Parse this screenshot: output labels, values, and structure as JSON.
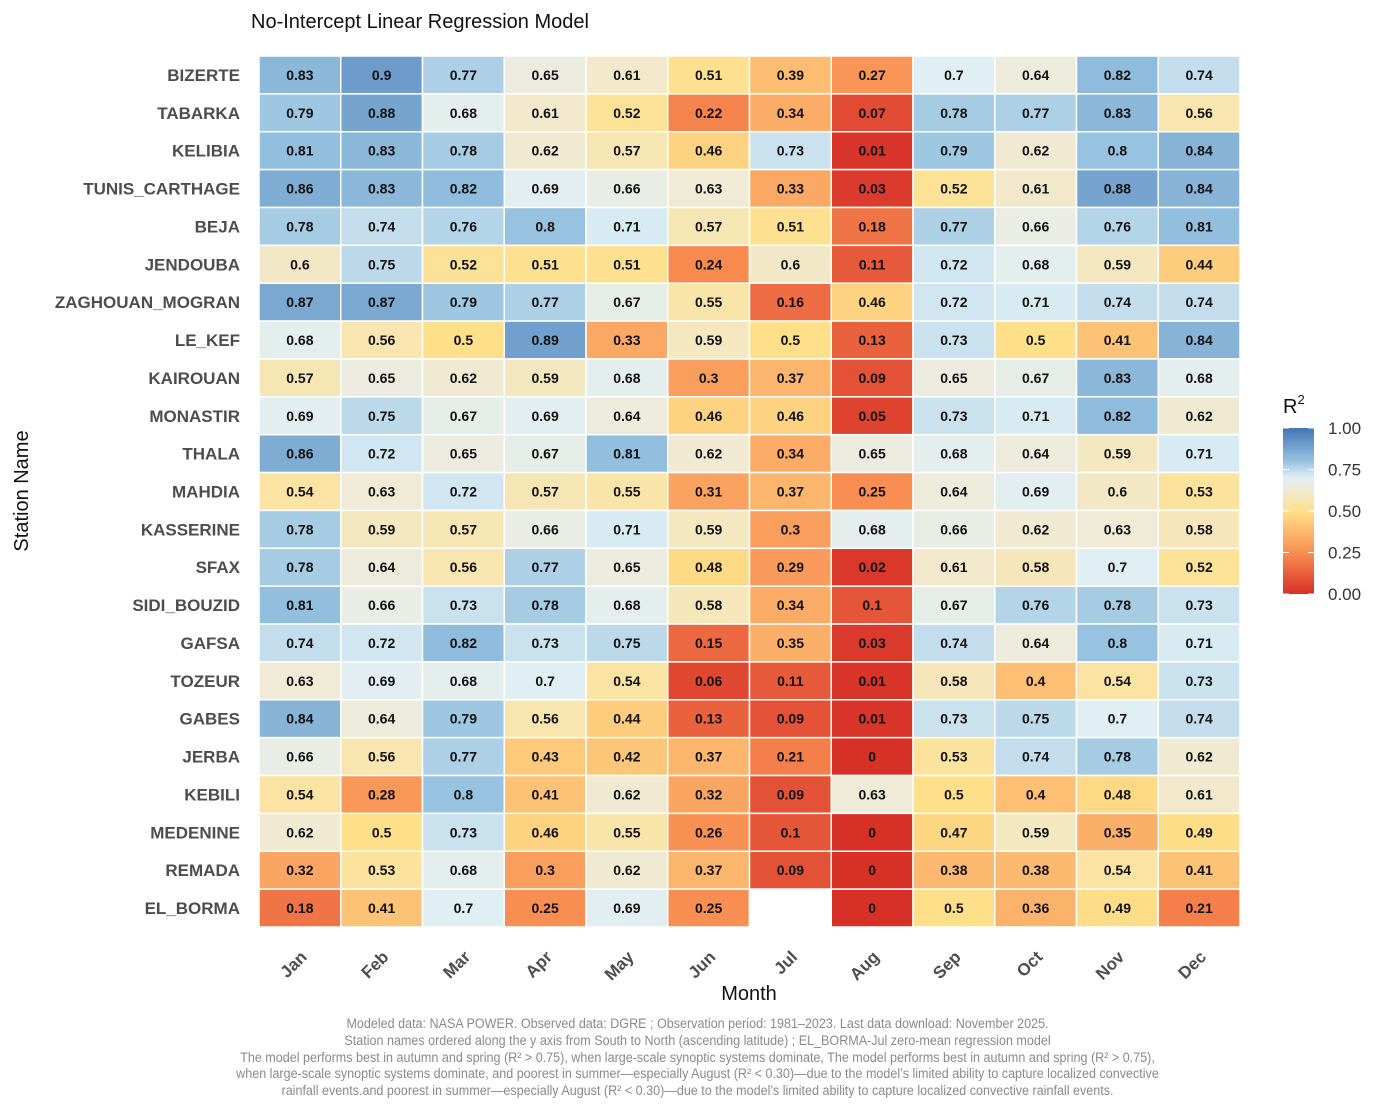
{
  "chart_data": {
    "type": "heatmap",
    "title": "No-Intercept Linear Regression Model",
    "xlabel": "Month",
    "ylabel": "Station Name",
    "x_categories": [
      "Jan",
      "Feb",
      "Mar",
      "Apr",
      "May",
      "Jun",
      "Jul",
      "Aug",
      "Sep",
      "Oct",
      "Nov",
      "Dec"
    ],
    "y_categories": [
      "BIZERTE",
      "TABARKA",
      "KELIBIA",
      "TUNIS_CARTHAGE",
      "BEJA",
      "JENDOUBA",
      "ZAGHOUAN_MOGRAN",
      "LE_KEF",
      "KAIROUAN",
      "MONASTIR",
      "THALA",
      "MAHDIA",
      "KASSERINE",
      "SFAX",
      "SIDI_BOUZID",
      "GAFSA",
      "TOZEUR",
      "GABES",
      "JERBA",
      "KEBILI",
      "MEDENINE",
      "REMADA",
      "EL_BORMA"
    ],
    "values": [
      [
        0.83,
        0.9,
        0.77,
        0.65,
        0.61,
        0.51,
        0.39,
        0.27,
        0.7,
        0.64,
        0.82,
        0.74
      ],
      [
        0.79,
        0.88,
        0.68,
        0.61,
        0.52,
        0.22,
        0.34,
        0.07,
        0.78,
        0.77,
        0.83,
        0.56
      ],
      [
        0.81,
        0.83,
        0.78,
        0.62,
        0.57,
        0.46,
        0.73,
        0.01,
        0.79,
        0.62,
        0.8,
        0.84
      ],
      [
        0.86,
        0.83,
        0.82,
        0.69,
        0.66,
        0.63,
        0.33,
        0.03,
        0.52,
        0.61,
        0.88,
        0.84
      ],
      [
        0.78,
        0.74,
        0.76,
        0.8,
        0.71,
        0.57,
        0.51,
        0.18,
        0.77,
        0.66,
        0.76,
        0.81
      ],
      [
        0.6,
        0.75,
        0.52,
        0.51,
        0.51,
        0.24,
        0.6,
        0.11,
        0.72,
        0.68,
        0.59,
        0.44
      ],
      [
        0.87,
        0.87,
        0.79,
        0.77,
        0.67,
        0.55,
        0.16,
        0.46,
        0.72,
        0.71,
        0.74,
        0.74
      ],
      [
        0.68,
        0.56,
        0.5,
        0.89,
        0.33,
        0.59,
        0.5,
        0.13,
        0.73,
        0.5,
        0.41,
        0.84
      ],
      [
        0.57,
        0.65,
        0.62,
        0.59,
        0.68,
        0.3,
        0.37,
        0.09,
        0.65,
        0.67,
        0.83,
        0.68
      ],
      [
        0.69,
        0.75,
        0.67,
        0.69,
        0.64,
        0.46,
        0.46,
        0.05,
        0.73,
        0.71,
        0.82,
        0.62
      ],
      [
        0.86,
        0.72,
        0.65,
        0.67,
        0.81,
        0.62,
        0.34,
        0.65,
        0.68,
        0.64,
        0.59,
        0.71
      ],
      [
        0.54,
        0.63,
        0.72,
        0.57,
        0.55,
        0.31,
        0.37,
        0.25,
        0.64,
        0.69,
        0.6,
        0.53
      ],
      [
        0.78,
        0.59,
        0.57,
        0.66,
        0.71,
        0.59,
        0.3,
        0.68,
        0.66,
        0.62,
        0.63,
        0.58
      ],
      [
        0.78,
        0.64,
        0.56,
        0.77,
        0.65,
        0.48,
        0.29,
        0.02,
        0.61,
        0.58,
        0.7,
        0.52
      ],
      [
        0.81,
        0.66,
        0.73,
        0.78,
        0.68,
        0.58,
        0.34,
        0.1,
        0.67,
        0.76,
        0.78,
        0.73
      ],
      [
        0.74,
        0.72,
        0.82,
        0.73,
        0.75,
        0.15,
        0.35,
        0.03,
        0.74,
        0.64,
        0.8,
        0.71
      ],
      [
        0.63,
        0.69,
        0.68,
        0.7,
        0.54,
        0.06,
        0.11,
        0.01,
        0.58,
        0.4,
        0.54,
        0.73
      ],
      [
        0.84,
        0.64,
        0.79,
        0.56,
        0.44,
        0.13,
        0.09,
        0.01,
        0.73,
        0.75,
        0.7,
        0.74
      ],
      [
        0.66,
        0.56,
        0.77,
        0.43,
        0.42,
        0.37,
        0.21,
        0,
        0.53,
        0.74,
        0.78,
        0.62
      ],
      [
        0.54,
        0.28,
        0.8,
        0.41,
        0.62,
        0.32,
        0.09,
        0.63,
        0.5,
        0.4,
        0.48,
        0.61
      ],
      [
        0.62,
        0.5,
        0.73,
        0.46,
        0.55,
        0.26,
        0.1,
        0,
        0.47,
        0.59,
        0.35,
        0.49
      ],
      [
        0.32,
        0.53,
        0.68,
        0.3,
        0.62,
        0.37,
        0.09,
        0,
        0.38,
        0.38,
        0.54,
        0.41
      ],
      [
        0.18,
        0.41,
        0.7,
        0.25,
        0.69,
        0.25,
        null,
        0,
        0.5,
        0.36,
        0.49,
        0.21
      ]
    ],
    "color_scale": {
      "range": [
        0,
        1
      ],
      "stops": [
        [
          0,
          "#d73027"
        ],
        [
          0.25,
          "#f98e52"
        ],
        [
          0.5,
          "#fee08b"
        ],
        [
          0.62,
          "#f1ead2"
        ],
        [
          0.7,
          "#e0eff4"
        ],
        [
          0.8,
          "#97c3e0"
        ],
        [
          1,
          "#4575b4"
        ]
      ],
      "na_color": "#ffffff"
    },
    "legend": {
      "title": "R",
      "title_sup": "2",
      "ticks": [
        "1.00",
        "0.75",
        "0.50",
        "0.25",
        "0.00"
      ],
      "position": "right"
    },
    "grid": false
  },
  "caption": [
    "Modeled data: NASA POWER. Observed data: DGRE ; Observation period: 1981–2023. Last data download: November 2025.",
    "Station names ordered along the y axis from South to North (ascending latitude) ; EL_BORMA-Jul zero-mean regression model",
    "The model performs best in autumn and spring (R² > 0.75), when large-scale synoptic systems dominate, The model performs best in autumn and spring (R² > 0.75),",
    "when large-scale synoptic systems dominate, and poorest in summer—especially August (R² < 0.30)—due to the model’s limited ability to capture localized convective",
    "rainfall events.and poorest in summer—especially August (R² < 0.30)—due to the model’s limited ability to capture localized convective rainfall events."
  ]
}
